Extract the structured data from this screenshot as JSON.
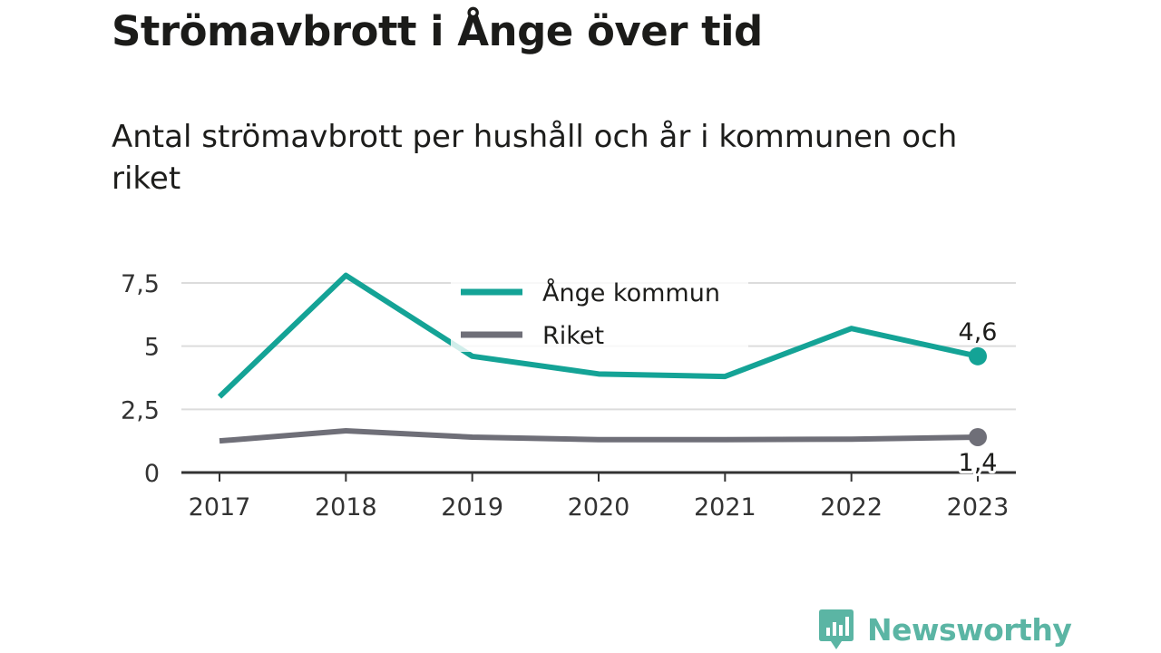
{
  "title": "Strömavbrott i Ånge över tid",
  "subtitle": "Antal strömavbrott per hushåll och år i kommunen och riket",
  "brand": {
    "name": "Newsworthy",
    "color": "#5bb5a4"
  },
  "chart_data": {
    "type": "line",
    "x": [
      "2017",
      "2018",
      "2019",
      "2020",
      "2021",
      "2022",
      "2023"
    ],
    "ylim": [
      0,
      7.5
    ],
    "yticks": [
      0,
      2.5,
      5,
      7.5
    ],
    "ytick_labels": [
      "0",
      "2,5",
      "5",
      "7,5"
    ],
    "grid": true,
    "legend_position": "top-center",
    "series": [
      {
        "name": "Ånge kommun",
        "color": "#14a396",
        "values": [
          3.0,
          7.8,
          4.6,
          3.9,
          3.8,
          5.7,
          4.6
        ],
        "end_label": "4,6"
      },
      {
        "name": "Riket",
        "color": "#6f6f78",
        "values": [
          1.25,
          1.65,
          1.4,
          1.3,
          1.3,
          1.32,
          1.4
        ],
        "end_label": "1,4"
      }
    ]
  }
}
